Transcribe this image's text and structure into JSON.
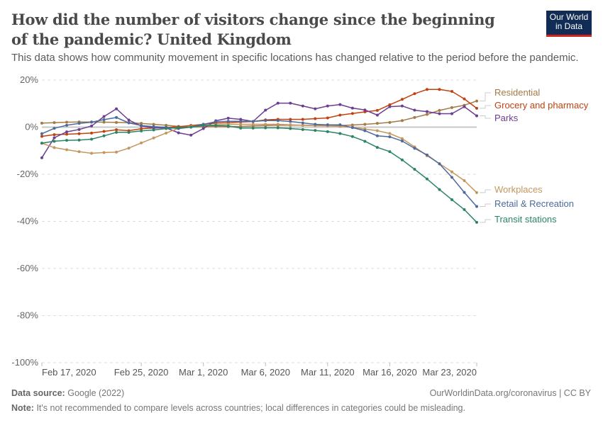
{
  "header": {
    "title": "How did the number of visitors change since the beginning of the pandemic? United Kingdom",
    "subtitle": "This data shows how community movement in specific locations has changed relative to the period before the pandemic.",
    "logo_text": "Our World in Data",
    "logo_colors": {
      "background": "#112d55",
      "accent": "#ce261e"
    }
  },
  "chart_data": {
    "type": "line",
    "x_start": "2020-02-17",
    "x_end": "2020-03-23",
    "x_tick_labels": [
      "Feb 17, 2020",
      "Feb 25, 2020",
      "Mar 1, 2020",
      "Mar 6, 2020",
      "Mar 11, 2020",
      "Mar 16, 2020",
      "Mar 23, 2020"
    ],
    "x_tick_dates": [
      "2020-02-17",
      "2020-02-25",
      "2020-03-01",
      "2020-03-06",
      "2020-03-11",
      "2020-03-16",
      "2020-03-23"
    ],
    "y_tick_labels": [
      "20%",
      "0%",
      "-20%",
      "-40%",
      "-60%",
      "-80%",
      "-100%"
    ],
    "y_ticks": [
      20,
      0,
      -20,
      -40,
      -60,
      -80,
      -100
    ],
    "ylim": [
      -100,
      20
    ],
    "grid": "horizontal dashed",
    "legend": "right, inline labels",
    "series": [
      {
        "name": "Residential",
        "color": "#a47a45",
        "values": [
          1.7,
          1.9,
          2.1,
          2.2,
          2.2,
          2.1,
          2.0,
          1.9,
          1.6,
          1.2,
          0.8,
          0.3,
          0.1,
          0.2,
          0.3,
          0.2,
          0.3,
          0.5,
          0.7,
          0.8,
          0.8,
          0.8,
          0.7,
          0.7,
          0.7,
          0.9,
          1.2,
          1.6,
          2.0,
          2.8,
          4.1,
          5.4,
          7.1,
          8.3,
          9.3,
          11.1
        ]
      },
      {
        "name": "Grocery and pharmacy",
        "color": "#c0420f",
        "values": [
          -3.9,
          -3.2,
          -3.0,
          -2.8,
          -2.5,
          -1.8,
          -1.1,
          -1.5,
          -0.7,
          -0.4,
          -0.2,
          0.2,
          0.7,
          1.2,
          1.7,
          1.9,
          2.2,
          2.4,
          3.1,
          3.3,
          3.3,
          3.3,
          3.6,
          3.9,
          5.1,
          5.8,
          6.5,
          7.1,
          9.5,
          11.8,
          14.2,
          16.0,
          16.0,
          15.2,
          12.0,
          8.0
        ]
      },
      {
        "name": "Parks",
        "color": "#6c3d91",
        "values": [
          -13,
          -4.5,
          -2,
          -1,
          0.5,
          4.5,
          7.8,
          3,
          0.5,
          -0.3,
          -0.3,
          -2.4,
          -3.4,
          -0.6,
          2.7,
          3.8,
          3.3,
          2.4,
          7.2,
          10.2,
          10.2,
          9,
          7.8,
          9,
          9.6,
          8.1,
          7.3,
          5.1,
          8.7,
          9,
          7.2,
          6.6,
          5.7,
          5.7,
          8.7,
          4.8
        ]
      },
      {
        "name": "Workplaces",
        "color": "#c59660",
        "values": [
          -6.8,
          -8.7,
          -9.6,
          -10.4,
          -11.1,
          -10.8,
          -10.6,
          -8.9,
          -6.7,
          -4.6,
          -2.5,
          -0.5,
          0.3,
          0.8,
          1.0,
          1.2,
          1.2,
          1.2,
          1.2,
          1.2,
          1.0,
          0.8,
          0.6,
          0.5,
          0.3,
          0,
          -0.8,
          -1.5,
          -2.7,
          -4.9,
          -8.4,
          -12.1,
          -15.5,
          -19.0,
          -22.7,
          -27.8
        ]
      },
      {
        "name": "Retail & Recreation",
        "color": "#4c6a9c",
        "values": [
          -2.8,
          -0.5,
          0.8,
          1.6,
          2.1,
          3.2,
          4.1,
          1.8,
          0.7,
          0.2,
          -0.1,
          -0.6,
          0,
          1.2,
          2.3,
          2.5,
          2.5,
          2.4,
          2.8,
          2.8,
          2.4,
          1.8,
          1.2,
          1.0,
          1.0,
          -0.2,
          -1.5,
          -3.7,
          -4.1,
          -5.9,
          -9.0,
          -11.8,
          -15.6,
          -21.3,
          -27.7,
          -33.7
        ]
      },
      {
        "name": "Transit stations",
        "color": "#2c8465",
        "values": [
          -6.8,
          -6.0,
          -5.6,
          -5.5,
          -5.1,
          -3.7,
          -2.2,
          -2.2,
          -1.6,
          -1.2,
          -0.6,
          -0.2,
          0,
          0.7,
          0.7,
          0.5,
          -0.4,
          -0.4,
          -0.3,
          -0.3,
          -0.6,
          -1.0,
          -1.4,
          -1.9,
          -2.7,
          -4.0,
          -6.0,
          -8.6,
          -10.4,
          -13.9,
          -17.9,
          -22.0,
          -26.5,
          -30.8,
          -35.0,
          -40.4
        ]
      }
    ]
  },
  "footer": {
    "source_label": "Data source:",
    "source_value": "Google (2022)",
    "url": "OurWorldinData.org/coronavirus | CC BY",
    "note_label": "Note:",
    "note_value": "It's not recommended to compare levels across countries; local differences in categories could be misleading."
  }
}
